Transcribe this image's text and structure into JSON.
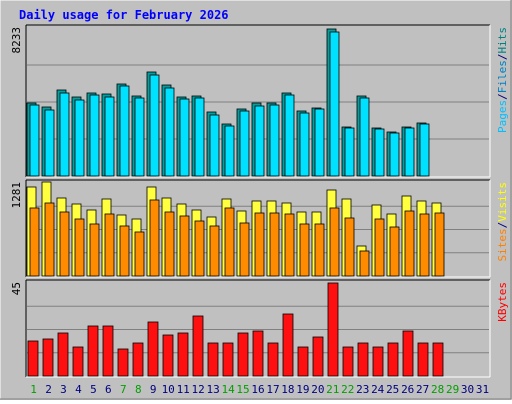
{
  "chart_data": {
    "type": "bar",
    "title": "Daily usage for February 2026",
    "x": [
      "1",
      "2",
      "3",
      "4",
      "5",
      "6",
      "7",
      "8",
      "9",
      "10",
      "11",
      "12",
      "13",
      "14",
      "15",
      "16",
      "17",
      "18",
      "19",
      "20",
      "21",
      "22",
      "23",
      "24",
      "25",
      "26",
      "27",
      "28",
      "29",
      "30",
      "31"
    ],
    "weekend_days": [
      "1",
      "7",
      "8",
      "14",
      "15",
      "21",
      "22",
      "28",
      "29"
    ],
    "panels": [
      {
        "id": "hits-files",
        "ymax_label": "8233",
        "ymax": 8233,
        "legend": [
          {
            "text": "Pages",
            "color": "#00c0ff"
          },
          {
            "text": "/",
            "color": "#000080"
          },
          {
            "text": "Files",
            "color": "#0080c0"
          },
          {
            "text": "/",
            "color": "#000080"
          },
          {
            "text": "Hits",
            "color": "#008080"
          }
        ],
        "series": [
          {
            "name": "Hits",
            "color": "#00a0a0",
            "values": [
              4050,
              3820,
              4770,
              4370,
              4630,
              4550,
              5130,
              4460,
              5800,
              5050,
              4420,
              4460,
              3550,
              2900,
              3750,
              4050,
              4080,
              4610,
              3600,
              3790,
              8170,
              2740,
              4460,
              2650,
              2440,
              2740,
              2950,
              null,
              null,
              null,
              null
            ]
          },
          {
            "name": "Files",
            "color": "#00e0ff",
            "values": [
              3960,
              3690,
              4610,
              4240,
              4520,
              4420,
              4990,
              4330,
              5610,
              4920,
              4310,
              4330,
              3420,
              2790,
              3630,
              3920,
              3950,
              4480,
              3500,
              3700,
              8030,
              2680,
              4330,
              2590,
              2380,
              2670,
              2870,
              null,
              null,
              null,
              null
            ]
          }
        ]
      },
      {
        "id": "visits-sites",
        "ymax_label": "1281",
        "ymax": 1281,
        "legend": [
          {
            "text": "Sites",
            "color": "#ff8000"
          },
          {
            "text": "/",
            "color": "#000080"
          },
          {
            "text": "Visits",
            "color": "#ffff00"
          }
        ],
        "series": [
          {
            "name": "Visits",
            "color": "#ffff40",
            "values": [
              1230,
              1300,
              1070,
              990,
              910,
              1060,
              840,
              790,
              1230,
              1080,
              990,
              910,
              810,
              1060,
              890,
              1030,
              1030,
              1010,
              880,
              880,
              1190,
              1060,
              420,
              980,
              850,
              1100,
              1030,
              1010,
              null,
              null,
              null
            ]
          },
          {
            "name": "Sites",
            "color": "#ff8c00",
            "values": [
              940,
              1010,
              880,
              790,
              720,
              850,
              690,
              610,
              1050,
              880,
              830,
              760,
              690,
              930,
              730,
              870,
              870,
              850,
              720,
              720,
              940,
              800,
              340,
              780,
              680,
              900,
              860,
              870,
              null,
              null,
              null
            ]
          }
        ]
      },
      {
        "id": "kbytes",
        "ymax_label": "45",
        "ymax": 45,
        "legend": [
          {
            "text": "KBytes",
            "color": "#ff0000"
          }
        ],
        "series": [
          {
            "name": "KBytes",
            "color": "#ff1010",
            "values": [
              17,
              18,
              21,
              14,
              24,
              24,
              13,
              16,
              26,
              20,
              21,
              29,
              16,
              16,
              21,
              22,
              16,
              30,
              14,
              19,
              45,
              14,
              16,
              14,
              16,
              22,
              16,
              16,
              null,
              null,
              null
            ]
          }
        ]
      }
    ]
  },
  "colors": {
    "background": "#c0c0c0",
    "plot_area": "#c0c0c0",
    "grid": "#808080",
    "title": "#0000ff",
    "axis_label": "#000000",
    "weekday_label": "#000080",
    "weekend_label": "#00a000"
  }
}
